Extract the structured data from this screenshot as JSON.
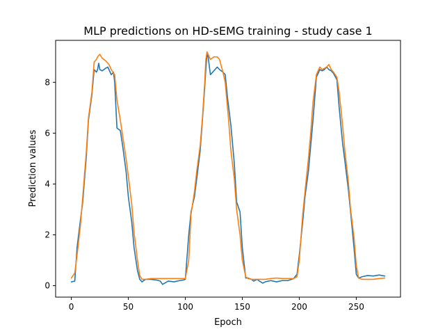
{
  "chart_data": {
    "type": "line",
    "title": "MLP predictions on HD-sEMG training - study case 1",
    "xlabel": "Epoch",
    "ylabel": "Prediction values",
    "xlim": [
      -13.8,
      288.8
    ],
    "ylim": [
      -0.45,
      9.65
    ],
    "xticks": [
      0,
      50,
      100,
      150,
      200,
      250
    ],
    "yticks": [
      0,
      2,
      4,
      6,
      8
    ],
    "grid": false,
    "legend": "none",
    "series": [
      {
        "color": "#1f77b4",
        "x": [
          0,
          3,
          5,
          8,
          10,
          13,
          15,
          18,
          20,
          22,
          23,
          24,
          25,
          27,
          30,
          32,
          33,
          35,
          37,
          38,
          40,
          43,
          45,
          48,
          50,
          53,
          55,
          58,
          60,
          62,
          65,
          70,
          75,
          78,
          80,
          85,
          90,
          95,
          98,
          100,
          103,
          105,
          108,
          110,
          113,
          115,
          117,
          118,
          119,
          120,
          122,
          124,
          126,
          128,
          130,
          133,
          135,
          137,
          140,
          143,
          145,
          148,
          150,
          153,
          155,
          158,
          160,
          163,
          165,
          168,
          170,
          175,
          180,
          185,
          190,
          195,
          198,
          200,
          203,
          205,
          208,
          210,
          212,
          215,
          218,
          220,
          222,
          224,
          226,
          228,
          230,
          233,
          235,
          238,
          240,
          243,
          245,
          248,
          250,
          252,
          255,
          260,
          265,
          270,
          275
        ],
        "y": [
          0.15,
          0.18,
          1.5,
          2.6,
          3.3,
          5.0,
          6.5,
          7.5,
          8.5,
          8.4,
          8.5,
          8.75,
          8.5,
          8.45,
          8.55,
          8.6,
          8.5,
          8.3,
          8.4,
          8.0,
          6.2,
          6.1,
          5.5,
          4.5,
          3.5,
          2.5,
          1.5,
          0.6,
          0.25,
          0.15,
          0.25,
          0.25,
          0.22,
          0.18,
          0.05,
          0.18,
          0.15,
          0.2,
          0.22,
          0.25,
          2.0,
          2.9,
          3.5,
          4.2,
          5.3,
          6.5,
          7.8,
          8.5,
          9.1,
          9.0,
          8.3,
          8.4,
          8.5,
          8.6,
          8.5,
          8.4,
          8.3,
          7.4,
          6.3,
          4.8,
          3.3,
          2.9,
          1.5,
          0.3,
          0.3,
          0.25,
          0.18,
          0.25,
          0.18,
          0.1,
          0.15,
          0.2,
          0.15,
          0.2,
          0.2,
          0.28,
          0.45,
          1.2,
          2.5,
          3.5,
          4.5,
          5.5,
          6.5,
          8.2,
          8.5,
          8.45,
          8.5,
          8.6,
          8.5,
          8.45,
          8.35,
          8.1,
          7.0,
          5.6,
          4.9,
          3.8,
          2.9,
          1.5,
          0.45,
          0.3,
          0.35,
          0.4,
          0.38,
          0.42,
          0.38
        ]
      },
      {
        "color": "#ff7f0e",
        "x": [
          0,
          3,
          5,
          8,
          10,
          13,
          15,
          18,
          20,
          22,
          23,
          25,
          27,
          30,
          33,
          35,
          38,
          40,
          43,
          45,
          48,
          50,
          53,
          55,
          58,
          60,
          62,
          65,
          70,
          75,
          80,
          85,
          90,
          95,
          100,
          103,
          105,
          108,
          110,
          113,
          115,
          117,
          118,
          119,
          120,
          122,
          125,
          128,
          130,
          133,
          135,
          138,
          140,
          143,
          145,
          148,
          150,
          153,
          155,
          158,
          160,
          165,
          170,
          175,
          180,
          185,
          190,
          195,
          198,
          200,
          203,
          205,
          208,
          210,
          212,
          215,
          218,
          220,
          222,
          224,
          226,
          228,
          230,
          233,
          235,
          238,
          240,
          243,
          245,
          248,
          250,
          252,
          255,
          260,
          265,
          270,
          275
        ],
        "y": [
          0.3,
          0.5,
          1.2,
          2.4,
          3.5,
          5.2,
          6.6,
          7.6,
          8.8,
          8.9,
          9.0,
          9.1,
          8.95,
          8.85,
          8.7,
          8.5,
          8.3,
          7.3,
          6.5,
          5.9,
          5.0,
          4.3,
          3.2,
          2.1,
          1.0,
          0.4,
          0.25,
          0.25,
          0.28,
          0.28,
          0.28,
          0.28,
          0.28,
          0.28,
          0.28,
          1.0,
          2.8,
          3.7,
          4.5,
          5.5,
          6.6,
          8.0,
          8.9,
          9.2,
          9.1,
          8.9,
          9.0,
          9.0,
          8.9,
          8.4,
          8.0,
          6.5,
          5.3,
          4.2,
          3.0,
          2.0,
          1.0,
          0.35,
          0.28,
          0.25,
          0.25,
          0.25,
          0.25,
          0.28,
          0.3,
          0.28,
          0.28,
          0.28,
          0.35,
          1.0,
          2.8,
          3.7,
          5.0,
          6.0,
          7.2,
          8.3,
          8.6,
          8.5,
          8.55,
          8.6,
          8.7,
          8.5,
          8.4,
          8.2,
          7.6,
          6.3,
          5.3,
          4.1,
          3.0,
          1.9,
          0.8,
          0.3,
          0.25,
          0.25,
          0.25,
          0.28,
          0.3
        ]
      }
    ]
  }
}
